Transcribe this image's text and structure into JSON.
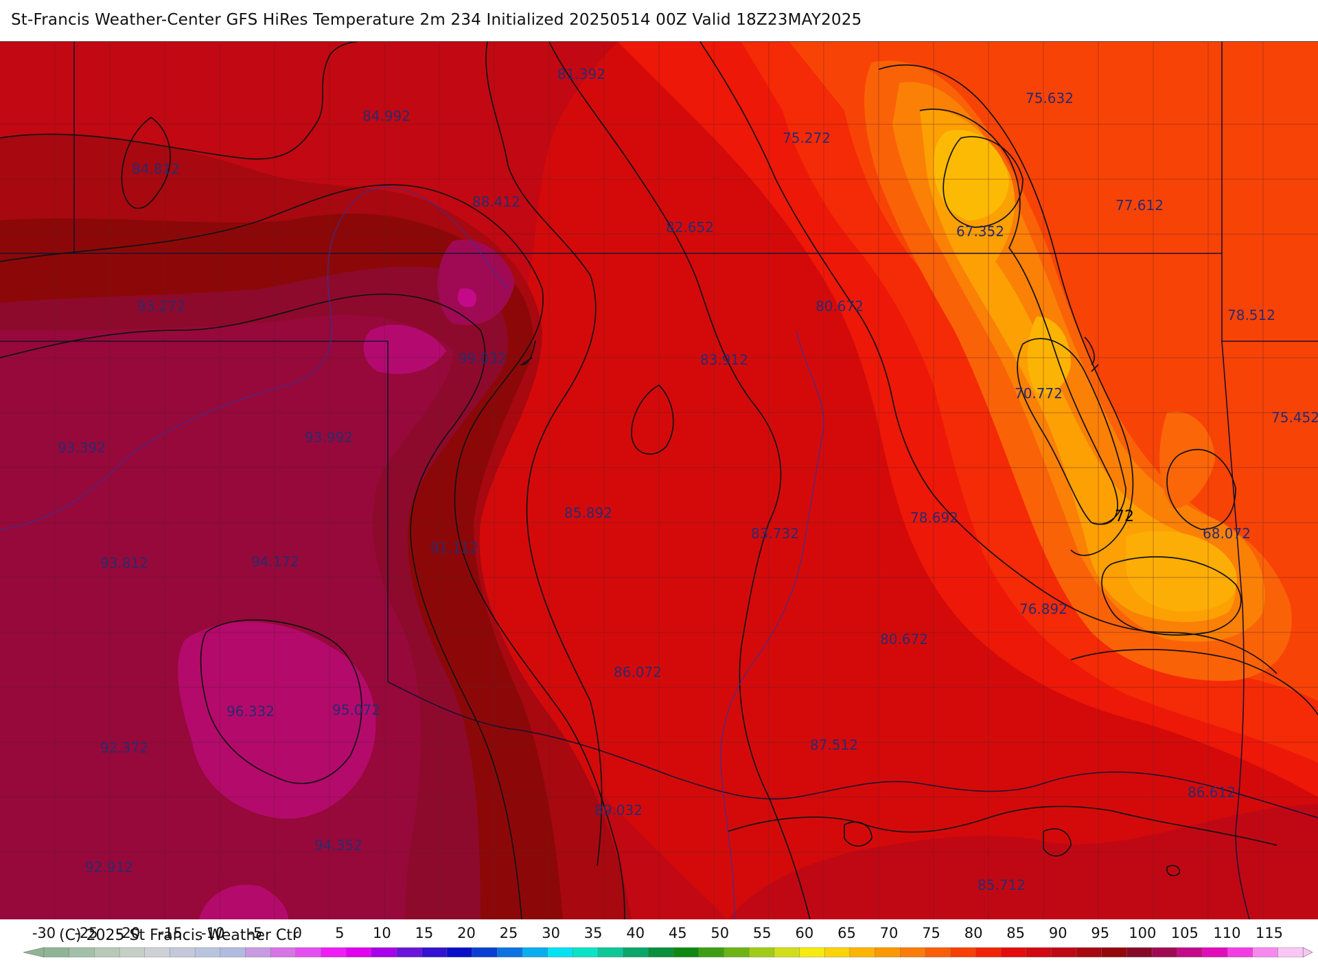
{
  "header": {
    "title": "St-Francis Weather-Center GFS HiRes Temperature 2m  234 Initialized 20250514 00Z Valid 18Z23MAY2025"
  },
  "map": {
    "temperature_labels": [
      {
        "text": "81.392"
      },
      {
        "text": "84.992"
      },
      {
        "text": "84.812"
      },
      {
        "text": "88.412"
      },
      {
        "text": "75.272"
      },
      {
        "text": "75.632"
      },
      {
        "text": "82.652"
      },
      {
        "text": "67.352"
      },
      {
        "text": "77.612"
      },
      {
        "text": "93.272"
      },
      {
        "text": "80.672"
      },
      {
        "text": "78.512"
      },
      {
        "text": "99.032"
      },
      {
        "text": "83.912"
      },
      {
        "text": "70.772"
      },
      {
        "text": "93.392"
      },
      {
        "text": "93.992"
      },
      {
        "text": "75.452"
      },
      {
        "text": "85.892"
      },
      {
        "text": "78.692"
      },
      {
        "text": "83.732"
      },
      {
        "text": "68.072"
      },
      {
        "text": "93.812"
      },
      {
        "text": "94.172"
      },
      {
        "text": "91.112"
      },
      {
        "text": "76.892"
      },
      {
        "text": "80.672"
      },
      {
        "text": "86.072"
      },
      {
        "text": "96.332"
      },
      {
        "text": "95.072"
      },
      {
        "text": "92.372"
      },
      {
        "text": "87.512"
      },
      {
        "text": "86.612"
      },
      {
        "text": "89.032"
      },
      {
        "text": "94.352"
      },
      {
        "text": "92.912"
      },
      {
        "text": "85.712"
      }
    ],
    "contour_label": "72"
  },
  "colorbar": {
    "ticks": [
      "-30",
      "-25",
      "-20",
      "-15",
      "-10",
      "-5",
      "0",
      "5",
      "10",
      "15",
      "20",
      "25",
      "30",
      "35",
      "40",
      "45",
      "50",
      "55",
      "60",
      "65",
      "70",
      "75",
      "80",
      "85",
      "90",
      "95",
      "100",
      "105",
      "110",
      "115"
    ],
    "colors": [
      "#8fb496",
      "#a4bfa7",
      "#b8c9b8",
      "#c6cfc6",
      "#cdd0d6",
      "#c3c9da",
      "#b9c4de",
      "#b1bbe0",
      "#c89ae2",
      "#d774e6",
      "#e44ff0",
      "#f01cf5",
      "#e000ef",
      "#a800ea",
      "#6a14dc",
      "#3511d2",
      "#0910c8",
      "#0a3fd4",
      "#0b74e2",
      "#08aef0",
      "#06e2f2",
      "#0ce2c6",
      "#0cc898",
      "#0aa66a",
      "#08903c",
      "#0c8a10",
      "#3e9e12",
      "#6cb414",
      "#a0cc18",
      "#d2de1c",
      "#f6ea10",
      "#fcd20a",
      "#fcb404",
      "#fc9806",
      "#fb7c08",
      "#fa5e08",
      "#f84006",
      "#f02404",
      "#e40c0c",
      "#d20812",
      "#be0814",
      "#a80810",
      "#94080c",
      "#860a26",
      "#a00a54",
      "#c40a88",
      "#e20cba",
      "#f43ce4",
      "#f688ee",
      "#f9c6f6"
    ],
    "copyright": "(C) 2025 St Francis Weather Ctr"
  }
}
